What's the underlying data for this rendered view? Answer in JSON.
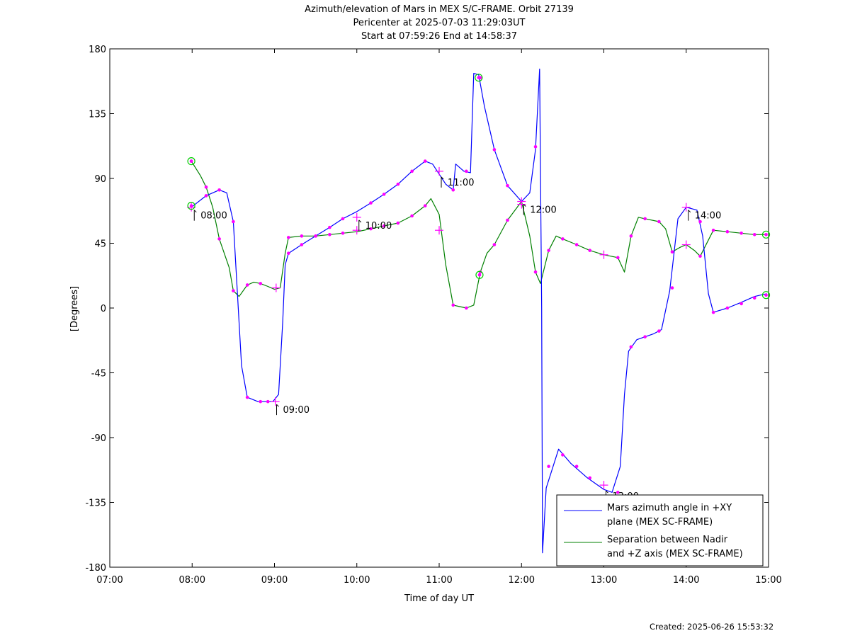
{
  "header": {
    "title": "Azimuth/elevation of Mars in MEX S/C-FRAME.  Orbit 27139",
    "pericenter": "Pericenter at 2025-07-03 11:29:03UT",
    "span": "Start at 07:59:26 End at 14:58:37"
  },
  "footer": {
    "created": "Created: 2025-06-26 15:53:32"
  },
  "colors": {
    "azimuth": "#0000ff",
    "separation": "#008000",
    "marker": "#ff00ff",
    "circle": "#00cc00"
  },
  "chart_data": {
    "type": "line",
    "title": "Azimuth/elevation of Mars in MEX S/C-FRAME.  Orbit 27139",
    "xlabel": "Time of day UT",
    "ylabel": "[Degrees]",
    "xlim": [
      7.0,
      15.0
    ],
    "ylim": [
      -180,
      180
    ],
    "x_ticks": [
      {
        "value": 7,
        "label": "07:00"
      },
      {
        "value": 8,
        "label": "08:00"
      },
      {
        "value": 9,
        "label": "09:00"
      },
      {
        "value": 10,
        "label": "10:00"
      },
      {
        "value": 11,
        "label": "11:00"
      },
      {
        "value": 12,
        "label": "12:00"
      },
      {
        "value": 13,
        "label": "13:00"
      },
      {
        "value": 14,
        "label": "14:00"
      },
      {
        "value": 15,
        "label": "15:00"
      }
    ],
    "y_ticks": [
      180,
      135,
      90,
      45,
      0,
      -45,
      -90,
      -135,
      -180
    ],
    "legend_position": "bottom-right",
    "series": [
      {
        "name": "Mars azimuth angle in +XY plane (MEX SC-FRAME)",
        "legend_lines": [
          "Mars azimuth angle in +XY",
          "plane (MEX SC-FRAME)"
        ],
        "color": "#0000ff",
        "points": [
          [
            7.99,
            70
          ],
          [
            8.17,
            78
          ],
          [
            8.33,
            82
          ],
          [
            8.42,
            80
          ],
          [
            8.5,
            60
          ],
          [
            8.55,
            10
          ],
          [
            8.6,
            -40
          ],
          [
            8.67,
            -62
          ],
          [
            8.8,
            -65
          ],
          [
            8.9,
            -65
          ],
          [
            8.98,
            -65
          ],
          [
            9.05,
            -60
          ],
          [
            9.1,
            -10
          ],
          [
            9.13,
            30
          ],
          [
            9.17,
            38
          ],
          [
            9.33,
            44
          ],
          [
            9.5,
            50
          ],
          [
            9.67,
            56
          ],
          [
            9.83,
            62
          ],
          [
            10.0,
            67
          ],
          [
            10.17,
            73
          ],
          [
            10.33,
            79
          ],
          [
            10.5,
            86
          ],
          [
            10.67,
            95
          ],
          [
            10.83,
            102
          ],
          [
            10.92,
            100
          ],
          [
            11.0,
            93
          ],
          [
            11.08,
            86
          ],
          [
            11.17,
            82
          ],
          [
            11.2,
            100
          ],
          [
            11.3,
            95
          ],
          [
            11.38,
            94
          ],
          [
            11.42,
            163
          ],
          [
            11.48,
            162
          ],
          [
            11.55,
            140
          ],
          [
            11.67,
            110
          ],
          [
            11.83,
            85
          ],
          [
            12.0,
            74
          ],
          [
            12.1,
            80
          ],
          [
            12.17,
            110
          ],
          [
            12.22,
            166
          ],
          [
            12.245,
            0
          ],
          [
            12.255,
            -170
          ],
          [
            12.3,
            -125
          ],
          [
            12.45,
            -98
          ],
          [
            12.6,
            -108
          ],
          [
            12.8,
            -118
          ],
          [
            13.0,
            -126
          ],
          [
            13.1,
            -128
          ],
          [
            13.2,
            -110
          ],
          [
            13.25,
            -60
          ],
          [
            13.3,
            -30
          ],
          [
            13.4,
            -22
          ],
          [
            13.6,
            -18
          ],
          [
            13.7,
            -15
          ],
          [
            13.8,
            12
          ],
          [
            13.9,
            62
          ],
          [
            14.0,
            70
          ],
          [
            14.13,
            68
          ],
          [
            14.2,
            50
          ],
          [
            14.27,
            10
          ],
          [
            14.33,
            -3
          ],
          [
            14.5,
            0
          ],
          [
            14.67,
            4
          ],
          [
            14.83,
            8
          ],
          [
            14.98,
            10
          ]
        ]
      },
      {
        "name": "Separation between Nadir and +Z axis (MEX SC-FRAME)",
        "legend_lines": [
          "Separation between Nadir",
          "and +Z axis (MEX SC-FRAME)"
        ],
        "color": "#008000",
        "points": [
          [
            7.99,
            102
          ],
          [
            8.1,
            92
          ],
          [
            8.17,
            84
          ],
          [
            8.25,
            70
          ],
          [
            8.33,
            48
          ],
          [
            8.45,
            28
          ],
          [
            8.5,
            12
          ],
          [
            8.57,
            8
          ],
          [
            8.67,
            16
          ],
          [
            8.75,
            18
          ],
          [
            8.83,
            17
          ],
          [
            8.92,
            15
          ],
          [
            9.0,
            13
          ],
          [
            9.07,
            14
          ],
          [
            9.13,
            38
          ],
          [
            9.17,
            49
          ],
          [
            9.33,
            50
          ],
          [
            9.5,
            50
          ],
          [
            9.67,
            51
          ],
          [
            9.83,
            52
          ],
          [
            10.0,
            53
          ],
          [
            10.17,
            55
          ],
          [
            10.33,
            57
          ],
          [
            10.5,
            59
          ],
          [
            10.67,
            64
          ],
          [
            10.83,
            71
          ],
          [
            10.9,
            76
          ],
          [
            11.0,
            65
          ],
          [
            11.08,
            30
          ],
          [
            11.17,
            2
          ],
          [
            11.25,
            1
          ],
          [
            11.33,
            0
          ],
          [
            11.42,
            2
          ],
          [
            11.5,
            25
          ],
          [
            11.58,
            38
          ],
          [
            11.67,
            44
          ],
          [
            11.83,
            61
          ],
          [
            12.0,
            74
          ],
          [
            12.1,
            50
          ],
          [
            12.17,
            25
          ],
          [
            12.23,
            17
          ],
          [
            12.33,
            40
          ],
          [
            12.42,
            50
          ],
          [
            12.5,
            48
          ],
          [
            12.67,
            44
          ],
          [
            12.83,
            40
          ],
          [
            13.0,
            37
          ],
          [
            13.17,
            35
          ],
          [
            13.25,
            25
          ],
          [
            13.33,
            50
          ],
          [
            13.42,
            63
          ],
          [
            13.5,
            62
          ],
          [
            13.67,
            60
          ],
          [
            13.75,
            55
          ],
          [
            13.83,
            39
          ],
          [
            13.92,
            42
          ],
          [
            14.0,
            44
          ],
          [
            14.1,
            40
          ],
          [
            14.17,
            36
          ],
          [
            14.33,
            54
          ],
          [
            14.5,
            53
          ],
          [
            14.67,
            52
          ],
          [
            14.83,
            51
          ],
          [
            14.98,
            51
          ]
        ]
      }
    ],
    "markers": [
      {
        "x": 7.99,
        "y": 102
      },
      {
        "x": 8.17,
        "y": 84
      },
      {
        "x": 8.33,
        "y": 48
      },
      {
        "x": 8.5,
        "y": 12
      },
      {
        "x": 8.67,
        "y": 16
      },
      {
        "x": 8.83,
        "y": 17
      },
      {
        "x": 9.17,
        "y": 49
      },
      {
        "x": 9.33,
        "y": 50
      },
      {
        "x": 9.5,
        "y": 50
      },
      {
        "x": 9.67,
        "y": 51
      },
      {
        "x": 9.83,
        "y": 52
      },
      {
        "x": 10.17,
        "y": 55
      },
      {
        "x": 10.33,
        "y": 57
      },
      {
        "x": 10.5,
        "y": 59
      },
      {
        "x": 10.67,
        "y": 64
      },
      {
        "x": 10.83,
        "y": 71
      },
      {
        "x": 11.17,
        "y": 2
      },
      {
        "x": 11.33,
        "y": 0
      },
      {
        "x": 11.5,
        "y": 25
      },
      {
        "x": 11.67,
        "y": 44
      },
      {
        "x": 11.83,
        "y": 61
      },
      {
        "x": 12.17,
        "y": 25
      },
      {
        "x": 12.33,
        "y": 40
      },
      {
        "x": 12.5,
        "y": 48
      },
      {
        "x": 12.67,
        "y": 44
      },
      {
        "x": 12.83,
        "y": 40
      },
      {
        "x": 13.17,
        "y": 35
      },
      {
        "x": 13.33,
        "y": 50
      },
      {
        "x": 13.5,
        "y": 62
      },
      {
        "x": 13.67,
        "y": 60
      },
      {
        "x": 13.83,
        "y": 39
      },
      {
        "x": 14.17,
        "y": 36
      },
      {
        "x": 14.33,
        "y": 54
      },
      {
        "x": 14.5,
        "y": 53
      },
      {
        "x": 14.67,
        "y": 52
      },
      {
        "x": 14.83,
        "y": 51
      },
      {
        "x": 8.17,
        "y": 78
      },
      {
        "x": 8.33,
        "y": 82
      },
      {
        "x": 8.5,
        "y": 60
      },
      {
        "x": 8.67,
        "y": -62
      },
      {
        "x": 8.83,
        "y": -65
      },
      {
        "x": 8.92,
        "y": -65
      },
      {
        "x": 9.17,
        "y": 38
      },
      {
        "x": 9.33,
        "y": 44
      },
      {
        "x": 9.5,
        "y": 50
      },
      {
        "x": 9.67,
        "y": 56
      },
      {
        "x": 9.83,
        "y": 62
      },
      {
        "x": 10.17,
        "y": 73
      },
      {
        "x": 10.33,
        "y": 79
      },
      {
        "x": 10.5,
        "y": 86
      },
      {
        "x": 10.67,
        "y": 95
      },
      {
        "x": 10.83,
        "y": 102
      },
      {
        "x": 11.17,
        "y": 82
      },
      {
        "x": 11.33,
        "y": 95
      },
      {
        "x": 11.5,
        "y": 160
      },
      {
        "x": 11.67,
        "y": 110
      },
      {
        "x": 11.83,
        "y": 85
      },
      {
        "x": 12.17,
        "y": 112
      },
      {
        "x": 12.33,
        "y": -110
      },
      {
        "x": 12.5,
        "y": -102
      },
      {
        "x": 12.67,
        "y": -110
      },
      {
        "x": 12.83,
        "y": -118
      },
      {
        "x": 13.17,
        "y": -128
      },
      {
        "x": 13.33,
        "y": -27
      },
      {
        "x": 13.5,
        "y": -20
      },
      {
        "x": 13.67,
        "y": -16
      },
      {
        "x": 13.83,
        "y": 14
      },
      {
        "x": 14.17,
        "y": 60
      },
      {
        "x": 14.33,
        "y": -3
      },
      {
        "x": 14.5,
        "y": 0
      },
      {
        "x": 14.67,
        "y": 3
      },
      {
        "x": 14.83,
        "y": 7
      }
    ],
    "crosses": [
      {
        "x": 7.99,
        "y": 70
      },
      {
        "x": 9.01,
        "y": -65
      },
      {
        "x": 9.02,
        "y": 14
      },
      {
        "x": 10.0,
        "y": 63
      },
      {
        "x": 10.0,
        "y": 54
      },
      {
        "x": 11.0,
        "y": 95
      },
      {
        "x": 11.0,
        "y": 54
      },
      {
        "x": 12.0,
        "y": 74
      },
      {
        "x": 12.0,
        "y": 72
      },
      {
        "x": 13.0,
        "y": -123
      },
      {
        "x": 13.0,
        "y": 37
      },
      {
        "x": 14.0,
        "y": 70
      },
      {
        "x": 14.0,
        "y": 44
      }
    ],
    "circles": [
      {
        "x": 7.99,
        "y": 102
      },
      {
        "x": 7.99,
        "y": 71
      },
      {
        "x": 11.48,
        "y": 160
      },
      {
        "x": 11.49,
        "y": 23
      },
      {
        "x": 14.97,
        "y": 51
      },
      {
        "x": 14.97,
        "y": 9
      }
    ],
    "time_annotations": [
      {
        "x": 8.0,
        "y": 70,
        "label": "08:00"
      },
      {
        "x": 9.0,
        "y": -65,
        "label": "09:00"
      },
      {
        "x": 10.0,
        "y": 63,
        "label": "10:00"
      },
      {
        "x": 11.0,
        "y": 93,
        "label": "11:00"
      },
      {
        "x": 12.0,
        "y": 74,
        "label": "12:00"
      },
      {
        "x": 13.0,
        "y": -125,
        "label": "13:00"
      },
      {
        "x": 14.0,
        "y": 70,
        "label": "14:00"
      }
    ]
  }
}
